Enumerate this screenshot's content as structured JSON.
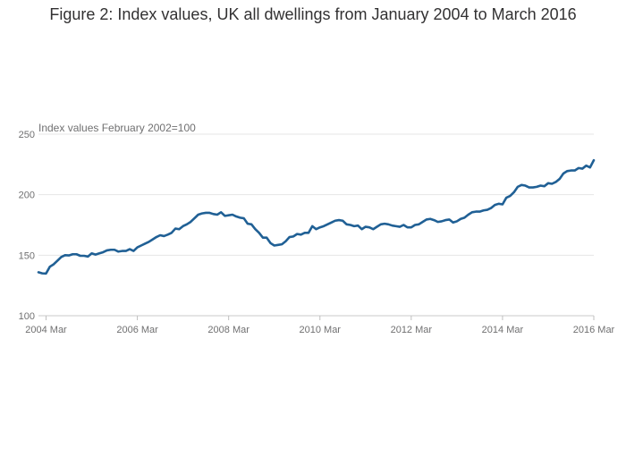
{
  "chart_data": {
    "type": "line",
    "title": "Figure 2: Index values, UK all dwellings from January 2004 to March 2016",
    "ylabel": "Index values February 2002=100",
    "xlabel": "",
    "ylim": [
      100,
      250
    ],
    "yticks": [
      100,
      150,
      200,
      250
    ],
    "xticks": [
      "2004 Mar",
      "2006 Mar",
      "2008 Mar",
      "2010 Mar",
      "2012 Mar",
      "2014 Mar",
      "2016 Mar"
    ],
    "x_start": "2004 Jan",
    "x_end": "2016 Mar",
    "grid": true,
    "line_color": "#206095",
    "series": [
      {
        "values": [
          135.9,
          135,
          134.9,
          140.5,
          142.5,
          145.5,
          148.5,
          150,
          149.8,
          150.8,
          150.8,
          149.5,
          149.5,
          148.9,
          151.5,
          150.5,
          151.5,
          152.5,
          154,
          154.5,
          154.5,
          153,
          153.5,
          153.5,
          155,
          153.5,
          156.5,
          158,
          159.5,
          161,
          163,
          165,
          166.5,
          165.8,
          167,
          168.5,
          172,
          171.5,
          174,
          175.5,
          177.5,
          180.5,
          183.5,
          184.5,
          185,
          185,
          184,
          183.5,
          185.5,
          182.5,
          183,
          183.5,
          182,
          181,
          180.5,
          176,
          175.5,
          171.5,
          168.5,
          164.5,
          164.5,
          160,
          158,
          158.5,
          159,
          161.5,
          165,
          165.5,
          167.5,
          167,
          168.5,
          168.5,
          174,
          171.5,
          173,
          174,
          175.5,
          177,
          178.5,
          179,
          178.5,
          175.5,
          175,
          174,
          174.5,
          171.5,
          173.5,
          173,
          171.5,
          173.5,
          175.5,
          176,
          175.5,
          174.5,
          174,
          173.5,
          175,
          173,
          173,
          175,
          175.5,
          177.5,
          179.5,
          180,
          179,
          177.5,
          178,
          179,
          179.5,
          177,
          178,
          180,
          181,
          183.5,
          185.5,
          186,
          186,
          187,
          187.5,
          189,
          191.5,
          192.5,
          192,
          197.5,
          199,
          202,
          206.5,
          208,
          207.5,
          206,
          206,
          206.5,
          207.5,
          207,
          209.5,
          209,
          210.5,
          213,
          217.5,
          219.5,
          220,
          220,
          222,
          221.5,
          224,
          222.5,
          228.5
        ]
      }
    ]
  }
}
